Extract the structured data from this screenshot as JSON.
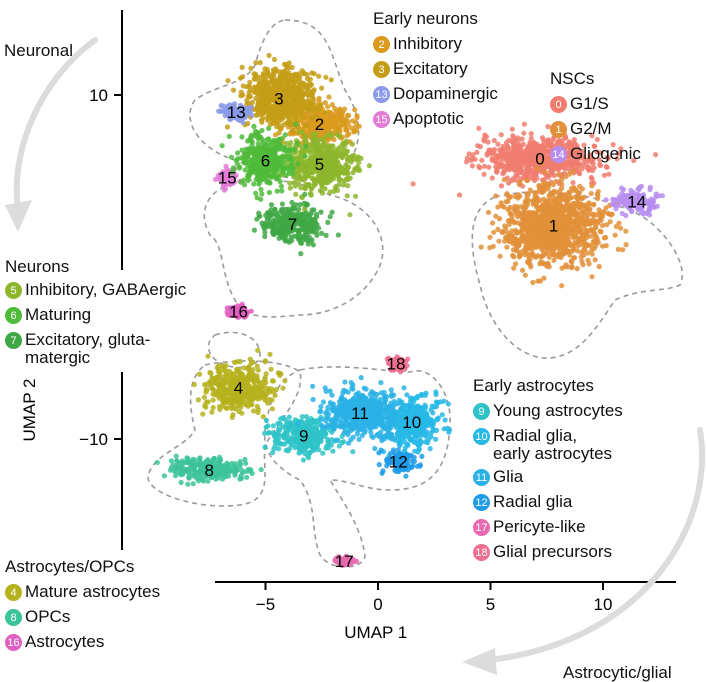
{
  "colors": {
    "nsc_g1s": "#f07c6e",
    "nsc_g2m": "#e2913a",
    "gliogenic": "#b78ef0",
    "inhibitory_early": "#d99a1d",
    "excitatory_early": "#c49d16",
    "dopaminergic": "#8a9ae8",
    "apoptotic": "#e27ad6",
    "gaba": "#8db62d",
    "maturing": "#4fbb3a",
    "glutamatergic": "#3fa845",
    "mature_astro": "#b5b21d",
    "opcs": "#3cc39a",
    "astrocytes16": "#e05fc0",
    "young_astro": "#2ec3c8",
    "radial_early": "#27b8e6",
    "glia": "#2ab2e6",
    "radial_glia": "#1f9be8",
    "pericyte": "#e96ab0",
    "glial_prec": "#ee6f8f"
  },
  "annotations": {
    "neuronal": "Neuronal",
    "astrocytic": "Astrocytic/glial"
  },
  "legends": {
    "early_neurons": {
      "title": "Early neurons",
      "items": [
        {
          "badge": "2",
          "label": "Inhibitory",
          "color": "#d99a1d"
        },
        {
          "badge": "3",
          "label": "Excitatory",
          "color": "#c49d16"
        },
        {
          "badge": "13",
          "label": "Dopaminergic",
          "color": "#8a9ae8"
        },
        {
          "badge": "15",
          "label": "Apoptotic",
          "color": "#e27ad6"
        }
      ]
    },
    "nscs": {
      "title": "NSCs",
      "items": [
        {
          "badge": "0",
          "label": "G1/S",
          "color": "#f07c6e"
        },
        {
          "badge": "1",
          "label": "G2/M",
          "color": "#e2913a"
        },
        {
          "badge": "14",
          "label": "Gliogenic",
          "color": "#b78ef0"
        }
      ]
    },
    "neurons": {
      "title": "Neurons",
      "items": [
        {
          "badge": "5",
          "label": "Inhibitory, GABAergic",
          "color": "#8db62d"
        },
        {
          "badge": "6",
          "label": "Maturing",
          "color": "#4fbb3a"
        },
        {
          "badge": "7",
          "label": "Excitatory, gluta-\nmatergic",
          "color": "#3fa845"
        }
      ]
    },
    "astro_opcs": {
      "title": "Astrocytes/OPCs",
      "items": [
        {
          "badge": "4",
          "label": "Mature astrocytes",
          "color": "#b5b21d"
        },
        {
          "badge": "8",
          "label": "OPCs",
          "color": "#3cc39a"
        },
        {
          "badge": "16",
          "label": "Astrocytes",
          "color": "#e05fc0"
        }
      ]
    },
    "early_astro": {
      "title": "Early astrocytes",
      "items": [
        {
          "badge": "9",
          "label": "Young astrocytes",
          "color": "#2ec3c8"
        },
        {
          "badge": "10",
          "label": "Radial glia,\nearly astrocytes",
          "color": "#27b8e6"
        },
        {
          "badge": "11",
          "label": "Glia",
          "color": "#2ab2e6"
        },
        {
          "badge": "12",
          "label": "Radial glia",
          "color": "#1f9be8"
        },
        {
          "badge": "17",
          "label": "Pericyte-like",
          "color": "#e96ab0"
        },
        {
          "badge": "18",
          "label": "Glial precursors",
          "color": "#ee6f8f"
        }
      ]
    }
  },
  "chart_data": {
    "type": "scatter",
    "xlabel": "UMAP 1",
    "ylabel": "UMAP 2",
    "x_ticks": [
      -5,
      0,
      5,
      10
    ],
    "y_ticks": [
      10,
      -10
    ],
    "xlim": [
      -7.5,
      14
    ],
    "ylim": [
      -16,
      14
    ],
    "clusters": [
      {
        "id": "0",
        "label": "0",
        "name": "G1/S",
        "color": "#f07c6e",
        "center": [
          7.2,
          6.3
        ],
        "spread": [
          2.4,
          1.1
        ]
      },
      {
        "id": "1",
        "label": "1",
        "name": "G2/M",
        "color": "#e2913a",
        "center": [
          7.8,
          2.4
        ],
        "spread": [
          2.0,
          2.0
        ]
      },
      {
        "id": "14",
        "label": "14",
        "name": "Gliogenic",
        "color": "#b78ef0",
        "center": [
          11.5,
          3.8
        ],
        "spread": [
          0.9,
          0.6
        ]
      },
      {
        "id": "2",
        "label": "2",
        "name": "Inhibitory",
        "color": "#d99a1d",
        "center": [
          -2.6,
          8.3
        ],
        "spread": [
          1.3,
          1.0
        ]
      },
      {
        "id": "3",
        "label": "3",
        "name": "Excitatory",
        "color": "#c49d16",
        "center": [
          -4.4,
          9.8
        ],
        "spread": [
          1.4,
          1.6
        ]
      },
      {
        "id": "13",
        "label": "13",
        "name": "Dopaminergic",
        "color": "#8a9ae8",
        "center": [
          -6.3,
          9.0
        ],
        "spread": [
          0.5,
          0.4
        ]
      },
      {
        "id": "15",
        "label": "15",
        "name": "Apoptotic",
        "color": "#e27ad6",
        "center": [
          -6.7,
          5.2
        ],
        "spread": [
          0.3,
          0.4
        ]
      },
      {
        "id": "5",
        "label": "5",
        "name": "Inhibitory, GABAergic",
        "color": "#8db62d",
        "center": [
          -2.6,
          6.0
        ],
        "spread": [
          1.4,
          1.4
        ]
      },
      {
        "id": "6",
        "label": "6",
        "name": "Maturing",
        "color": "#4fbb3a",
        "center": [
          -5.0,
          6.2
        ],
        "spread": [
          1.1,
          1.3
        ]
      },
      {
        "id": "7",
        "label": "7",
        "name": "Excitatory, glutamatergic",
        "color": "#3fa845",
        "center": [
          -3.8,
          2.5
        ],
        "spread": [
          1.2,
          1.0
        ]
      },
      {
        "id": "16",
        "label": "16",
        "name": "Astrocytes",
        "color": "#e05fc0",
        "center": [
          -6.2,
          -2.6
        ],
        "spread": [
          0.4,
          0.3
        ]
      },
      {
        "id": "4",
        "label": "4",
        "name": "Mature astrocytes",
        "color": "#b5b21d",
        "center": [
          -6.2,
          -7.0
        ],
        "spread": [
          1.3,
          1.2
        ]
      },
      {
        "id": "8",
        "label": "8",
        "name": "OPCs",
        "color": "#3cc39a",
        "center": [
          -7.5,
          -11.8
        ],
        "spread": [
          1.5,
          0.6
        ]
      },
      {
        "id": "9",
        "label": "9",
        "name": "Young astrocytes",
        "color": "#2ec3c8",
        "center": [
          -3.3,
          -9.8
        ],
        "spread": [
          1.3,
          0.9
        ]
      },
      {
        "id": "10",
        "label": "10",
        "name": "Radial glia, early astrocytes",
        "color": "#27b8e6",
        "center": [
          1.5,
          -9.0
        ],
        "spread": [
          1.1,
          1.3
        ]
      },
      {
        "id": "11",
        "label": "11",
        "name": "Glia",
        "color": "#2ab2e6",
        "center": [
          -0.8,
          -8.5
        ],
        "spread": [
          1.5,
          1.2
        ]
      },
      {
        "id": "12",
        "label": "12",
        "name": "Radial glia",
        "color": "#1f9be8",
        "center": [
          0.9,
          -11.3
        ],
        "spread": [
          0.7,
          0.6
        ]
      },
      {
        "id": "17",
        "label": "17",
        "name": "Pericyte-like",
        "color": "#e96ab0",
        "center": [
          -1.5,
          -17.1
        ],
        "spread": [
          0.3,
          0.2
        ]
      },
      {
        "id": "18",
        "label": "18",
        "name": "Glial precursors",
        "color": "#ee6f8f",
        "center": [
          0.8,
          -5.6
        ],
        "spread": [
          0.3,
          0.3
        ]
      }
    ]
  }
}
